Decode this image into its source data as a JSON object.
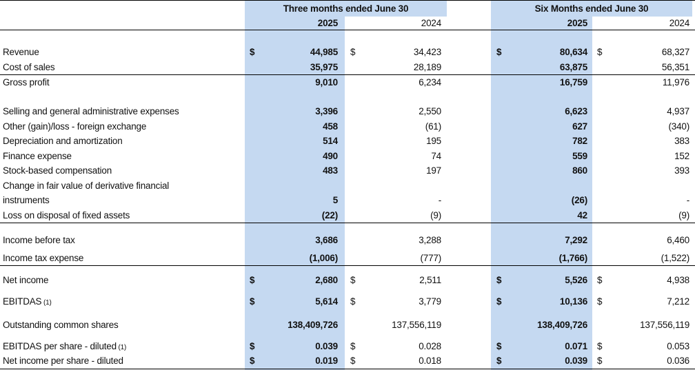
{
  "header": {
    "period_1": "Three months ended June 30",
    "period_2": "Six Months ended June 30",
    "years": [
      "2025",
      "2024",
      "2025",
      "2024"
    ]
  },
  "colors": {
    "highlight": "#c5d9f1"
  },
  "rows": [
    {
      "label": "Revenue",
      "values": [
        "44,985",
        "34,423",
        "80,634",
        "68,327"
      ],
      "dollar": true
    },
    {
      "label": "Cost of sales",
      "values": [
        "35,975",
        "28,189",
        "63,875",
        "56,351"
      ]
    },
    {
      "label": "Gross profit",
      "values": [
        "9,010",
        "6,234",
        "16,759",
        "11,976"
      ]
    },
    {
      "label": "Selling and general administrative expenses",
      "values": [
        "3,396",
        "2,550",
        "6,623",
        "4,937"
      ]
    },
    {
      "label": "Other (gain)/loss - foreign exchange",
      "values": [
        "458",
        "(61)",
        "627",
        "(340)"
      ]
    },
    {
      "label": "Depreciation and amortization",
      "values": [
        "514",
        "195",
        "782",
        "383"
      ]
    },
    {
      "label": "Finance expense",
      "values": [
        "490",
        "74",
        "559",
        "152"
      ]
    },
    {
      "label": "Stock-based compensation",
      "values": [
        "483",
        "197",
        "860",
        "393"
      ]
    },
    {
      "label": "Change  in  fair  value  of  derivative  financial",
      "label_line2": "instruments",
      "values": [
        "5",
        "-",
        "(26)",
        "-"
      ]
    },
    {
      "label": "Loss on disposal of fixed assets",
      "values": [
        "(22)",
        "(9)",
        "42",
        "(9)"
      ]
    },
    {
      "label": "Income before tax",
      "values": [
        "3,686",
        "3,288",
        "7,292",
        "6,460"
      ]
    },
    {
      "label": "Income tax expense",
      "values": [
        "(1,006)",
        "(777)",
        "(1,766)",
        "(1,522)"
      ]
    },
    {
      "label": "Net income",
      "values": [
        "2,680",
        "2,511",
        "5,526",
        "4,938"
      ],
      "dollar": true
    },
    {
      "label": "EBITDAS",
      "note": "(1)",
      "values": [
        "5,614",
        "3,779",
        "10,136",
        "7,212"
      ],
      "dollar": true
    },
    {
      "label": "Outstanding common shares",
      "values": [
        "138,409,726",
        "137,556,119",
        "138,409,726",
        "137,556,119"
      ]
    },
    {
      "label": "EBITDAS per share - diluted",
      "note": "(1)",
      "values": [
        "0.039",
        "0.028",
        "0.071",
        "0.053"
      ],
      "dollar": true
    },
    {
      "label": "Net income per share - diluted",
      "values": [
        "0.019",
        "0.018",
        "0.039",
        "0.036"
      ],
      "dollar": true
    }
  ],
  "currency_symbol": "$"
}
